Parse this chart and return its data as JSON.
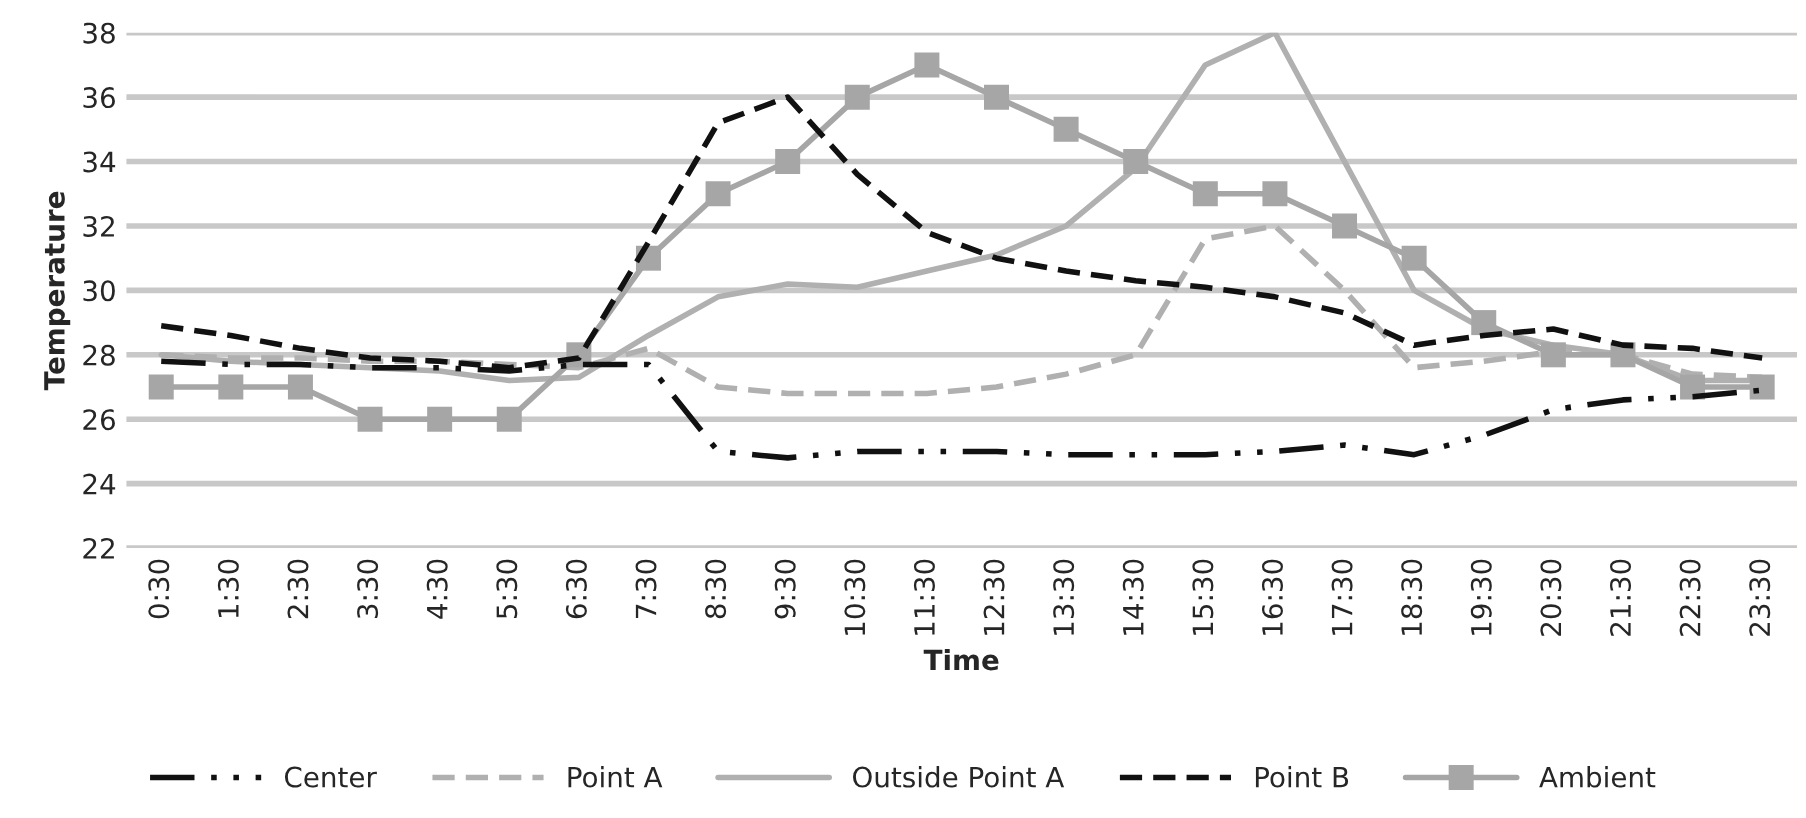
{
  "chart_data": {
    "type": "line",
    "xlabel": "Time",
    "ylabel": "Temperature",
    "categories": [
      "0:30",
      "1:30",
      "2:30",
      "3:30",
      "4:30",
      "5:30",
      "6:30",
      "7:30",
      "8:30",
      "9:30",
      "10:30",
      "11:30",
      "12:30",
      "13:30",
      "14:30",
      "15:30",
      "16:30",
      "17:30",
      "18:30",
      "19:30",
      "20:30",
      "21:30",
      "22:30",
      "23:30"
    ],
    "series": [
      {
        "name": "Center",
        "color": "#111111",
        "line_style": "dashdot",
        "values": [
          27.8,
          27.7,
          27.7,
          27.6,
          27.6,
          27.5,
          27.7,
          27.7,
          25.0,
          24.8,
          25.0,
          25.0,
          25.0,
          24.9,
          24.9,
          24.9,
          25.0,
          25.2,
          24.9,
          25.5,
          26.3,
          26.6,
          26.7,
          26.9
        ]
      },
      {
        "name": "Point A",
        "color": "#b0b0b0",
        "line_style": "dashed",
        "values": [
          28.0,
          27.9,
          27.9,
          27.8,
          27.8,
          27.7,
          27.6,
          28.2,
          27.0,
          26.8,
          26.8,
          26.8,
          27.0,
          27.4,
          28.0,
          31.6,
          32.0,
          30.0,
          27.6,
          27.8,
          28.1,
          28.0,
          27.4,
          27.3
        ]
      },
      {
        "name": "Outside Point A",
        "color": "#b0b0b0",
        "line_style": "solid",
        "values": [
          28.0,
          27.8,
          27.7,
          27.6,
          27.5,
          27.2,
          27.3,
          28.6,
          29.8,
          30.2,
          30.1,
          30.6,
          31.1,
          32.0,
          33.8,
          37.0,
          38.0,
          34.0,
          30.0,
          28.8,
          28.3,
          28.0,
          27.2,
          27.2
        ]
      },
      {
        "name": "Point B",
        "color": "#111111",
        "line_style": "dashed",
        "values": [
          28.9,
          28.6,
          28.2,
          27.9,
          27.8,
          27.6,
          27.9,
          31.5,
          35.2,
          36.0,
          33.6,
          31.8,
          31.0,
          30.6,
          30.3,
          30.1,
          29.8,
          29.3,
          28.3,
          28.6,
          28.8,
          28.3,
          28.2,
          27.9
        ]
      },
      {
        "name": "Ambient",
        "color": "#a6a6a6",
        "line_style": "solid",
        "marker": "square",
        "values": [
          27,
          27,
          27,
          26,
          26,
          26,
          28,
          31,
          33,
          34,
          36,
          37,
          36,
          35,
          34,
          33,
          33,
          32,
          31,
          29,
          28,
          28,
          27,
          27
        ]
      }
    ],
    "ylim": [
      22,
      38
    ],
    "yticks": [
      22,
      24,
      26,
      28,
      30,
      32,
      34,
      36,
      38
    ],
    "grid": "y",
    "legend": "bottom"
  }
}
